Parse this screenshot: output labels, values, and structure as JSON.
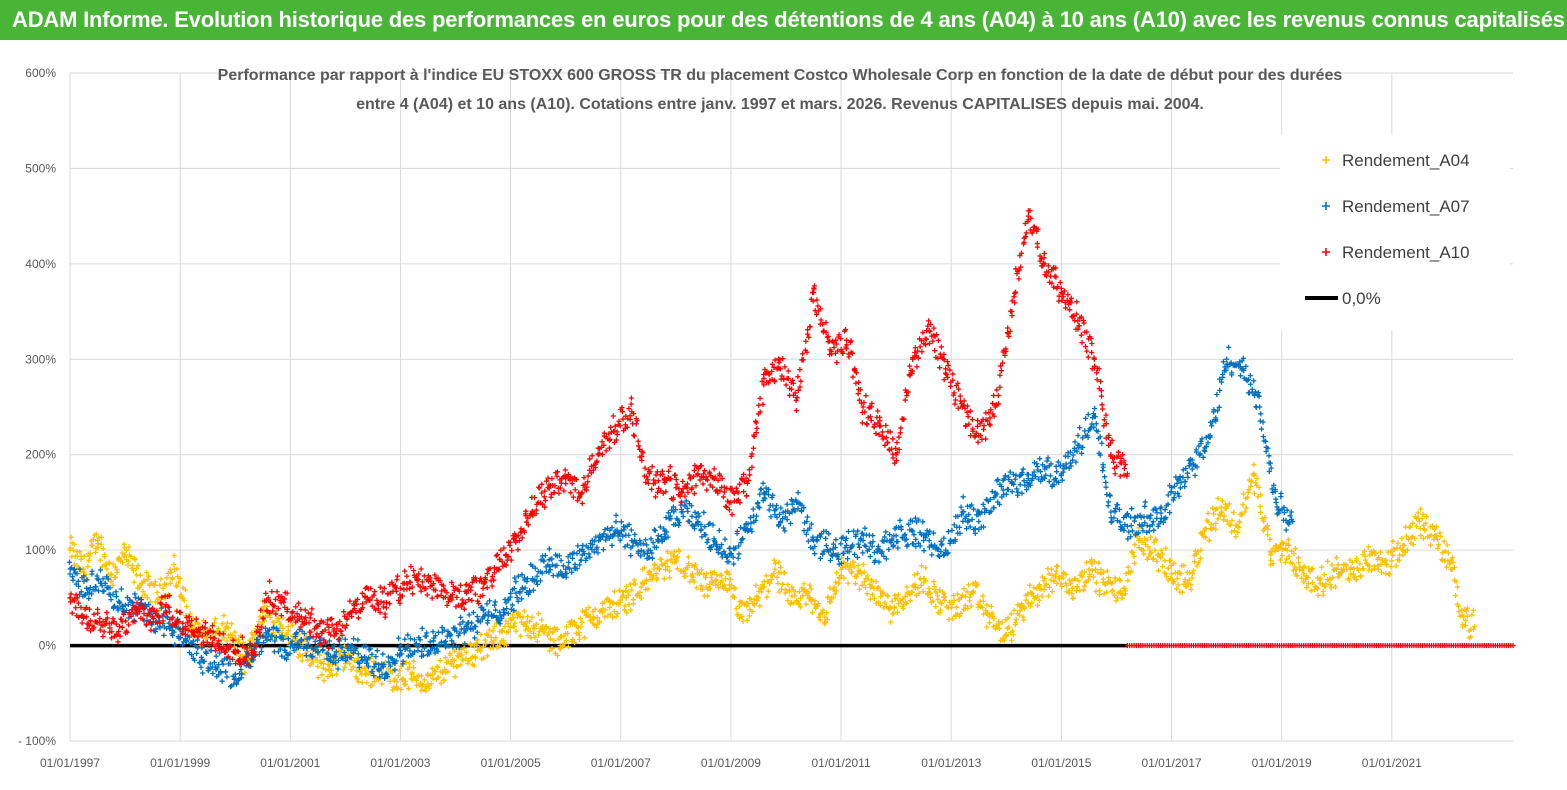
{
  "banner": {
    "title": "ADAM Informe. Evolution historique des performances en euros pour des détentions de 4 ans (A04) à 10 ans (A10) avec les revenus connus capitalisés"
  },
  "colors": {
    "banner": "#49b536",
    "a04": "#ffc000",
    "a07": "#0070c0",
    "a10": "#ff0000",
    "zero": "#000000",
    "grid": "#d9d9d9"
  },
  "chart_data": {
    "type": "scatter",
    "title_line1": "Performance par rapport à l'indice EU STOXX 600 GROSS TR  du placement Costco Wholesale Corp en fonction de la date de début pour des durées",
    "title_line2": "entre 4 (A04) et 10 ans (A10). Cotations entre janv. 1997 et mars. 2026. Revenus CAPITALISES depuis mai. 2004.",
    "xlabel": "",
    "ylabel": "",
    "x_range": [
      1997.0,
      2023.2
    ],
    "ylim": [
      -100,
      600
    ],
    "y_ticks": [
      {
        "value": 600,
        "label": "600%"
      },
      {
        "value": 500,
        "label": "500%"
      },
      {
        "value": 400,
        "label": "400%"
      },
      {
        "value": 300,
        "label": "300%"
      },
      {
        "value": 200,
        "label": "200%"
      },
      {
        "value": 100,
        "label": "100%"
      },
      {
        "value": 0,
        "label": "0%"
      },
      {
        "value": -100,
        "label": "- 100%"
      }
    ],
    "x_ticks": [
      {
        "value": 1997,
        "label": "01/01/1997"
      },
      {
        "value": 1999,
        "label": "01/01/1999"
      },
      {
        "value": 2001,
        "label": "01/01/2001"
      },
      {
        "value": 2003,
        "label": "01/01/2003"
      },
      {
        "value": 2005,
        "label": "01/01/2005"
      },
      {
        "value": 2007,
        "label": "01/01/2007"
      },
      {
        "value": 2009,
        "label": "01/01/2009"
      },
      {
        "value": 2011,
        "label": "01/01/2011"
      },
      {
        "value": 2013,
        "label": "01/01/2013"
      },
      {
        "value": 2015,
        "label": "01/01/2015"
      },
      {
        "value": 2017,
        "label": "01/01/2017"
      },
      {
        "value": 2019,
        "label": "01/01/2019"
      },
      {
        "value": 2021,
        "label": "01/01/2021"
      }
    ],
    "grid": true,
    "legend_position": "top-right",
    "series": [
      {
        "name": "Rendement_A04",
        "color": "#ffc000",
        "x": [
          1997.0,
          1997.25,
          1997.5,
          1997.75,
          1998.0,
          1998.3,
          1998.6,
          1998.9,
          1999.2,
          1999.5,
          1999.8,
          2000.0,
          2000.2,
          2000.5,
          2000.8,
          2001.1,
          2001.4,
          2001.7,
          2002.0,
          2002.3,
          2002.6,
          2002.9,
          2003.2,
          2003.5,
          2003.8,
          2004.1,
          2004.4,
          2004.7,
          2005.0,
          2005.3,
          2005.6,
          2005.9,
          2006.2,
          2006.5,
          2006.8,
          2007.1,
          2007.4,
          2007.7,
          2008.0,
          2008.3,
          2008.6,
          2008.9,
          2009.2,
          2009.5,
          2009.8,
          2010.1,
          2010.4,
          2010.7,
          2011.0,
          2011.3,
          2011.6,
          2011.9,
          2012.2,
          2012.5,
          2012.8,
          2013.1,
          2013.4,
          2013.7,
          2014.0,
          2014.3,
          2014.6,
          2014.9,
          2015.2,
          2015.5,
          2015.8,
          2016.1,
          2016.4,
          2016.7,
          2017.0,
          2017.3,
          2017.6,
          2017.9,
          2018.2,
          2018.5,
          2018.8,
          2019.1,
          2019.4,
          2019.7,
          2020.0,
          2020.3,
          2020.6,
          2020.9,
          2021.2,
          2021.5,
          2021.8,
          2022.1,
          2022.3,
          2022.5
        ],
        "y": [
          100,
          80,
          110,
          75,
          95,
          65,
          50,
          80,
          20,
          10,
          15,
          5,
          -15,
          35,
          25,
          5,
          -15,
          -25,
          -10,
          -30,
          -25,
          -35,
          -30,
          -40,
          -25,
          -10,
          -5,
          5,
          20,
          25,
          15,
          0,
          20,
          30,
          40,
          50,
          65,
          80,
          90,
          75,
          60,
          70,
          30,
          50,
          80,
          45,
          55,
          30,
          80,
          75,
          60,
          40,
          55,
          70,
          45,
          40,
          55,
          30,
          10,
          40,
          60,
          75,
          60,
          80,
          65,
          55,
          110,
          100,
          75,
          65,
          120,
          145,
          125,
          180,
          95,
          100,
          75,
          65,
          80,
          75,
          95,
          85,
          105,
          130,
          115,
          80,
          30,
          20
        ]
      },
      {
        "name": "Rendement_A07",
        "color": "#0070c0",
        "x": [
          1997.0,
          1997.3,
          1997.6,
          1997.9,
          1998.2,
          1998.5,
          1998.8,
          1999.1,
          1999.4,
          1999.7,
          2000.0,
          2000.3,
          2000.6,
          2000.9,
          2001.2,
          2001.5,
          2001.8,
          2002.1,
          2002.4,
          2002.7,
          2003.0,
          2003.3,
          2003.6,
          2003.9,
          2004.2,
          2004.5,
          2004.8,
          2005.1,
          2005.4,
          2005.7,
          2006.0,
          2006.3,
          2006.6,
          2006.9,
          2007.2,
          2007.5,
          2007.8,
          2008.1,
          2008.4,
          2008.7,
          2009.0,
          2009.3,
          2009.6,
          2009.9,
          2010.2,
          2010.5,
          2010.8,
          2011.1,
          2011.4,
          2011.7,
          2012.0,
          2012.3,
          2012.6,
          2012.9,
          2013.2,
          2013.5,
          2013.8,
          2014.1,
          2014.4,
          2014.7,
          2015.0,
          2015.3,
          2015.6,
          2015.9,
          2016.2,
          2016.5,
          2016.8,
          2017.1,
          2017.4,
          2017.7,
          2018.0,
          2018.3,
          2018.6,
          2018.9,
          2019.2
        ],
        "y": [
          75,
          60,
          70,
          45,
          40,
          30,
          20,
          5,
          -15,
          -20,
          -30,
          -10,
          10,
          -5,
          5,
          0,
          -10,
          -5,
          -15,
          -20,
          -5,
          0,
          5,
          10,
          20,
          30,
          35,
          55,
          70,
          90,
          80,
          95,
          110,
          120,
          110,
          100,
          120,
          140,
          130,
          110,
          95,
          120,
          160,
          130,
          150,
          110,
          100,
          105,
          110,
          100,
          115,
          120,
          110,
          100,
          140,
          130,
          160,
          170,
          175,
          185,
          180,
          210,
          240,
          140,
          125,
          135,
          130,
          170,
          190,
          220,
          300,
          290,
          250,
          150,
          130
        ]
      },
      {
        "name": "Rendement_A10",
        "color": "#ff0000",
        "x": [
          1997.0,
          1997.3,
          1997.6,
          1997.9,
          1998.2,
          1998.5,
          1998.8,
          1999.1,
          1999.4,
          1999.7,
          2000.0,
          2000.3,
          2000.6,
          2000.9,
          2001.2,
          2001.5,
          2001.8,
          2002.1,
          2002.4,
          2002.7,
          2003.0,
          2003.3,
          2003.6,
          2003.9,
          2004.2,
          2004.5,
          2004.8,
          2005.1,
          2005.4,
          2005.7,
          2006.0,
          2006.3,
          2006.6,
          2006.9,
          2007.2,
          2007.5,
          2007.8,
          2008.1,
          2008.4,
          2008.7,
          2009.0,
          2009.3,
          2009.6,
          2009.9,
          2010.2,
          2010.5,
          2010.8,
          2011.1,
          2011.4,
          2011.7,
          2012.0,
          2012.3,
          2012.6,
          2012.9,
          2013.2,
          2013.5,
          2013.8,
          2014.1,
          2014.4,
          2014.7,
          2015.0,
          2015.3,
          2015.6,
          2015.9,
          2016.2
        ],
        "y": [
          50,
          30,
          25,
          20,
          35,
          30,
          40,
          20,
          10,
          5,
          -5,
          -10,
          50,
          40,
          30,
          20,
          10,
          35,
          50,
          45,
          60,
          70,
          65,
          50,
          55,
          60,
          90,
          110,
          140,
          165,
          175,
          160,
          200,
          230,
          245,
          170,
          175,
          160,
          180,
          175,
          150,
          170,
          280,
          290,
          260,
          370,
          310,
          320,
          250,
          230,
          200,
          300,
          330,
          290,
          250,
          220,
          250,
          350,
          450,
          400,
          370,
          340,
          300,
          200,
          180
        ]
      },
      {
        "name": "0,0%",
        "color": "#000000",
        "type": "line",
        "x": [
          1997.0,
          2016.2
        ],
        "y": [
          0,
          0
        ]
      }
    ],
    "red_zero_band": {
      "x_start": 2016.2,
      "x_end": 2023.2,
      "y": 0
    }
  }
}
